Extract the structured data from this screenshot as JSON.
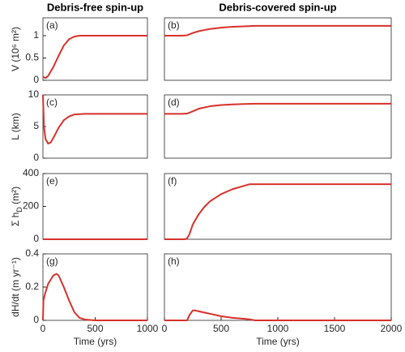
{
  "chart_data": [
    {
      "type": "line",
      "title": "Debris-free spin-up",
      "panel_label": "(a)",
      "ylabel": "V (10⁶ m²)",
      "color": "#d7312b",
      "x": [
        0,
        25,
        50,
        100,
        150,
        200,
        250,
        300,
        350,
        400,
        500,
        600,
        800,
        1000
      ],
      "values": [
        0.08,
        0.05,
        0.1,
        0.3,
        0.55,
        0.78,
        0.92,
        0.98,
        1.0,
        1.0,
        1.0,
        1.0,
        1.0,
        1.0
      ],
      "xlim": [
        0,
        1000
      ],
      "ylim": [
        0,
        1.4
      ],
      "yticks": [
        0,
        0.5,
        1
      ]
    },
    {
      "type": "line",
      "title": "Debris-covered spin-up",
      "panel_label": "(b)",
      "color": "#d7312b",
      "x": [
        0,
        150,
        200,
        250,
        300,
        400,
        500,
        600,
        700,
        800,
        1000,
        1500,
        2000
      ],
      "values": [
        1.0,
        1.0,
        1.01,
        1.06,
        1.1,
        1.15,
        1.18,
        1.2,
        1.21,
        1.22,
        1.22,
        1.22,
        1.22
      ],
      "xlim": [
        0,
        2000
      ],
      "ylim": [
        0,
        1.4
      ]
    },
    {
      "type": "line",
      "panel_label": "(c)",
      "ylabel": "L (km)",
      "color": "#d7312b",
      "x": [
        0,
        10,
        25,
        50,
        75,
        100,
        150,
        200,
        250,
        300,
        400,
        500,
        1000
      ],
      "values": [
        10,
        5,
        3,
        2.3,
        2.5,
        3.2,
        4.8,
        6,
        6.6,
        6.9,
        7,
        7,
        7
      ],
      "xlim": [
        0,
        1000
      ],
      "ylim": [
        0,
        10
      ],
      "yticks": [
        0,
        5,
        10
      ]
    },
    {
      "type": "line",
      "panel_label": "(d)",
      "color": "#d7312b",
      "x": [
        0,
        150,
        200,
        250,
        300,
        400,
        500,
        600,
        700,
        800,
        1000,
        1500,
        2000
      ],
      "values": [
        7,
        7,
        7.05,
        7.4,
        7.8,
        8.2,
        8.4,
        8.5,
        8.55,
        8.6,
        8.6,
        8.6,
        8.6
      ],
      "xlim": [
        0,
        2000
      ],
      "ylim": [
        0,
        10
      ]
    },
    {
      "type": "line",
      "panel_label": "(e)",
      "ylabel": [
        "Σ h",
        "D",
        " (m²)"
      ],
      "color": "#d7312b",
      "x": [
        0,
        1000
      ],
      "values": [
        0,
        0
      ],
      "xlim": [
        0,
        1000
      ],
      "ylim": [
        0,
        400
      ],
      "yticks": [
        0,
        200,
        400
      ]
    },
    {
      "type": "line",
      "panel_label": "(f)",
      "color": "#d7312b",
      "x": [
        0,
        180,
        200,
        220,
        250,
        300,
        350,
        400,
        500,
        600,
        700,
        750,
        800,
        1000,
        1500,
        2000
      ],
      "values": [
        0,
        0,
        5,
        30,
        90,
        150,
        195,
        230,
        275,
        305,
        325,
        335,
        335,
        335,
        335,
        335
      ],
      "xlim": [
        0,
        2000
      ],
      "ylim": [
        0,
        400
      ]
    },
    {
      "type": "line",
      "panel_label": "(g)",
      "ylabel": "dH/dt (m yr⁻¹)",
      "xlabel": "Time (yrs)",
      "color": "#d7312b",
      "x": [
        0,
        5,
        20,
        50,
        100,
        130,
        150,
        200,
        250,
        300,
        350,
        400,
        500,
        1000
      ],
      "values": [
        0,
        0.12,
        0.16,
        0.22,
        0.27,
        0.28,
        0.27,
        0.2,
        0.12,
        0.05,
        0.015,
        0.005,
        0,
        0
      ],
      "xlim": [
        0,
        1000
      ],
      "ylim": [
        0,
        0.4
      ],
      "yticks": [
        0,
        0.2,
        0.4
      ],
      "xticks": [
        0,
        500,
        1000
      ]
    },
    {
      "type": "line",
      "panel_label": "(h)",
      "xlabel": "Time (yrs)",
      "color": "#d7312b",
      "x": [
        0,
        200,
        220,
        250,
        270,
        300,
        400,
        500,
        600,
        700,
        750,
        800,
        2000
      ],
      "values": [
        0,
        0,
        0.03,
        0.06,
        0.06,
        0.055,
        0.04,
        0.025,
        0.015,
        0.01,
        0.006,
        0,
        0
      ],
      "xlim": [
        0,
        2000
      ],
      "ylim": [
        0,
        0.4
      ],
      "xticks": [
        0,
        500,
        1000,
        1500,
        2000
      ]
    }
  ]
}
